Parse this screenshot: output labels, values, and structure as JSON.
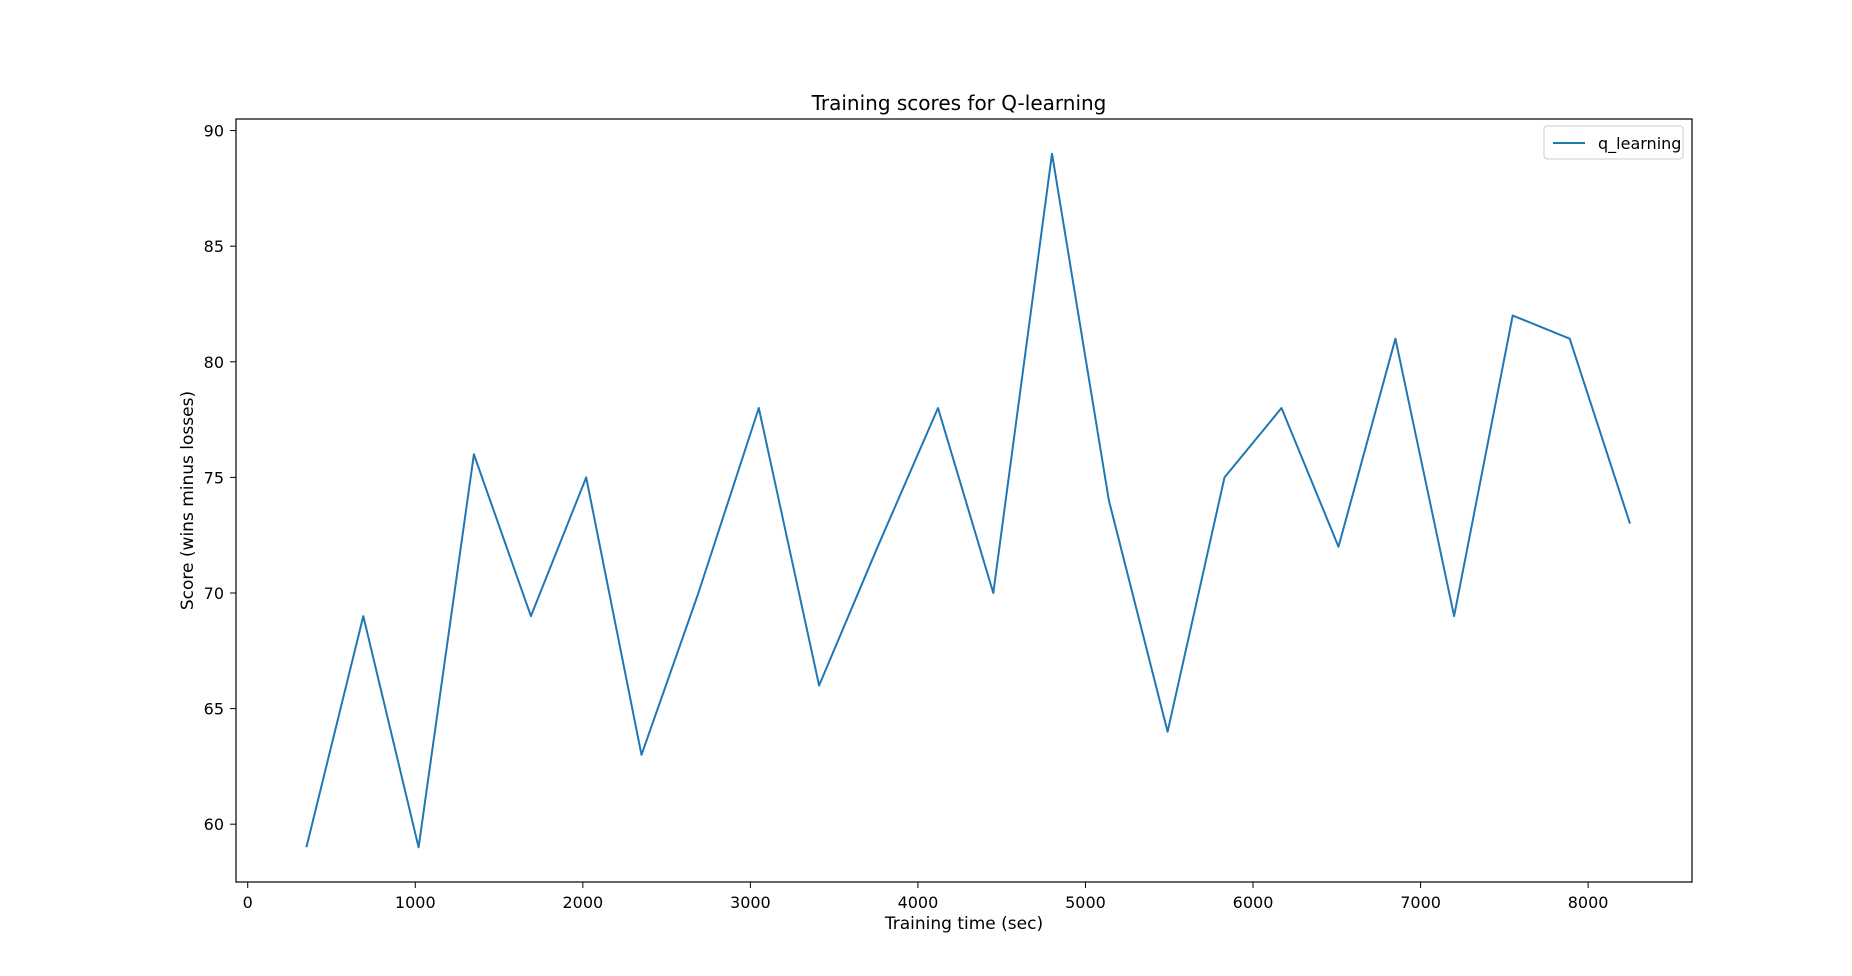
{
  "chart_data": {
    "type": "line",
    "title": "Training scores for Q-learning",
    "xlabel": "Training time (sec)",
    "ylabel": "Score (wins minus losses)",
    "xlim": [
      -70,
      8620
    ],
    "ylim": [
      57.5,
      90.5
    ],
    "xticks": [
      0,
      1000,
      2000,
      3000,
      4000,
      5000,
      6000,
      7000,
      8000
    ],
    "yticks": [
      60,
      65,
      70,
      75,
      80,
      85,
      90
    ],
    "grid": false,
    "legend_position": "top-right",
    "series": [
      {
        "name": "q_learning",
        "color": "#1f77b4",
        "x": [
          350,
          690,
          1020,
          1350,
          1690,
          2020,
          2350,
          2690,
          3050,
          3410,
          3760,
          4120,
          4450,
          4800,
          5140,
          5490,
          5830,
          6170,
          6510,
          6850,
          7200,
          7550,
          7890,
          8250
        ],
        "y": [
          59,
          69,
          59,
          76,
          69,
          75,
          63,
          70,
          78,
          66,
          72,
          78,
          70,
          89,
          74,
          64,
          75,
          78,
          72,
          81,
          69,
          82,
          81,
          73
        ]
      }
    ]
  }
}
